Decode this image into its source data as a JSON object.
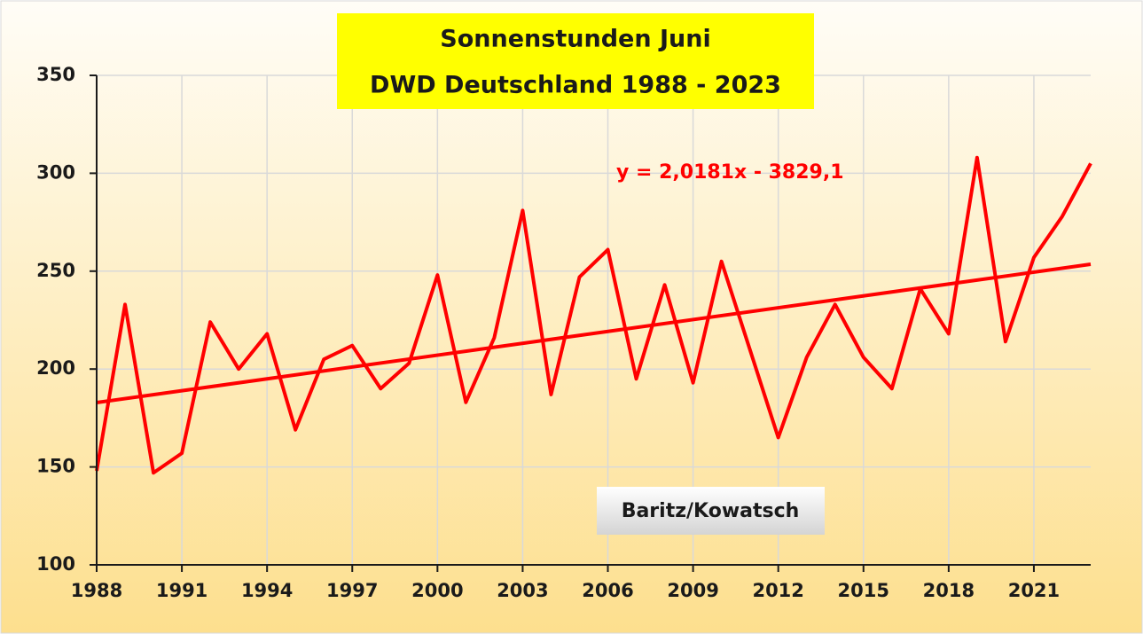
{
  "chart_data": {
    "type": "line",
    "title": "Sonnenstunden Juni",
    "subtitle": "DWD Deutschland 1988 - 2023",
    "annotation": "Baritz/Kowatsch",
    "x": [
      1988,
      1989,
      1990,
      1991,
      1992,
      1993,
      1994,
      1995,
      1996,
      1997,
      1998,
      1999,
      2000,
      2001,
      2002,
      2003,
      2004,
      2005,
      2006,
      2007,
      2008,
      2009,
      2010,
      2011,
      2012,
      2013,
      2014,
      2015,
      2016,
      2017,
      2018,
      2019,
      2020,
      2021,
      2022,
      2023
    ],
    "series": [
      {
        "color": "#ff0000",
        "values": [
          148,
          233,
          147,
          157,
          224,
          200,
          218,
          169,
          205,
          212,
          190,
          203,
          248,
          183,
          216,
          281,
          187,
          247,
          261,
          195,
          243,
          193,
          255,
          210,
          165,
          206,
          233,
          206,
          190,
          241,
          218,
          308,
          214,
          257,
          278,
          305
        ]
      }
    ],
    "trendline": {
      "label": "y = 2,0181x - 3829,1",
      "slope": 2.0181,
      "intercept": -3829.1,
      "color": "#ff0000"
    },
    "xlim": [
      1988,
      2023
    ],
    "xticks": [
      1988,
      1991,
      1994,
      1997,
      2000,
      2003,
      2006,
      2009,
      2012,
      2015,
      2018,
      2021
    ],
    "ylim": [
      100,
      350
    ],
    "yticks": [
      100,
      150,
      200,
      250,
      300,
      350
    ],
    "grid": true
  }
}
